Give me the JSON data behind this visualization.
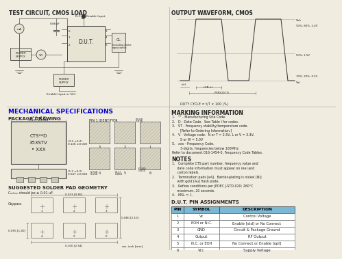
{
  "bg_color": "#f0ece0",
  "line_color": "#555555",
  "text_color": "#222222",
  "blue_title": "#0000cc",
  "header_bg": "#7ab8d4",
  "white": "#ffffff",
  "top_left_title": "TEST CIRCUIT, CMOS LOAD",
  "top_right_title": "OUTPUT WAVEFORM, CMOS",
  "mech_title": "MECHANICAL SPECIFICATIONS",
  "pkg_title": "PACKAGE DRAWING",
  "solder_title": "SUGGESTED SOLDER PAD GEOMETRY",
  "solder_sub": "Cₙₑₜₐₙₙ should be ≥ 0.01 uF.",
  "marking_title": "MARKING INFORMATION",
  "notes_title": "NOTES",
  "pin_title": "D.U.T. PIN ASSIGNMENTS",
  "marking_lines": [
    "1.   \"\" - Manufacturing Site Code.",
    "2.   D - Date Code.  See Table I for codes.",
    "3.   ST - Frequency stability/temperature code.",
    "        [Refer to Ordering Information.]",
    "4.   V - Voltage code.  N or T = 2.5V, L or V = 3.3V,",
    "        S or W = 5.0V",
    "5.   xxx - Frequency Code.",
    "        3-digits, frequencies below 100MHz",
    "Refer to document 016-1454-0, Frequency Code Tables."
  ],
  "notes_lines": [
    "1.   Complete CTS part number, frequency value and",
    "     date code information must appear on reel and",
    "     carton labels.",
    "2.   Termination pads [e4].  Barrier-plating is nickel [Ni]",
    "     with gold [Au] flash plate.",
    "3.   Reflow conditions per JEDEC J-STD-020; 260°C",
    "     maximum, 20 seconds.",
    "4.   MSL = 1."
  ],
  "pin_headers": [
    "PIN",
    "SYMBOL",
    "DESCRIPTION"
  ],
  "pin_rows": [
    [
      "1",
      "Vc",
      "Control Voltage"
    ],
    [
      "2",
      "EOH or N.C.",
      "Enable [std] or No Connect"
    ],
    [
      "3",
      "GND",
      "Circuit & Package Ground"
    ],
    [
      "4",
      "Output",
      "RF Output"
    ],
    [
      "5",
      "N.C. or EOH",
      "No Connect or Enable [opt]"
    ],
    [
      "6",
      "Vcc",
      "Supply Voltage"
    ]
  ]
}
